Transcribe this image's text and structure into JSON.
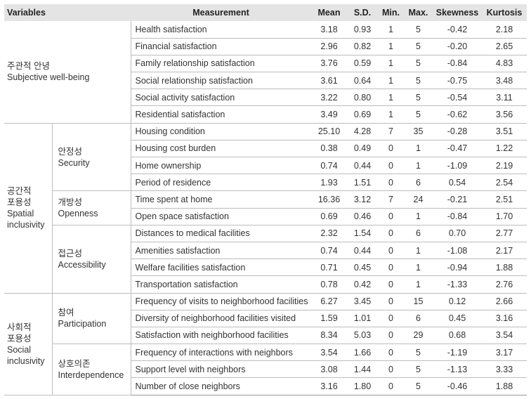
{
  "headers": {
    "variables": "Variables",
    "measurement": "Measurement",
    "mean": "Mean",
    "sd": "S.D.",
    "min": "Min.",
    "max": "Max.",
    "skewness": "Skewness",
    "kurtosis": "Kurtosis"
  },
  "groups": [
    {
      "ko": "주관적 안녕",
      "en": "Subjective well-being"
    },
    {
      "ko1": "공간적",
      "ko2": "포용성",
      "en1": "Spatial",
      "en2": "inclusivity"
    },
    {
      "ko1": "사회적",
      "ko2": "포용성",
      "en1": "Social",
      "en2": "inclusivity"
    }
  ],
  "subgroups": [
    {
      "ko": "안정성",
      "en": "Security"
    },
    {
      "ko": "개방성",
      "en": "Openness"
    },
    {
      "ko": "접근성",
      "en": "Accessibility"
    },
    {
      "ko": "참여",
      "en": "Participation"
    },
    {
      "ko": "상호의존",
      "en": "Interdependence"
    }
  ],
  "rows": [
    {
      "measurement": "Health satisfaction",
      "mean": "3.18",
      "sd": "0.93",
      "min": "1",
      "max": "5",
      "skewness": "-0.42",
      "kurtosis": "2.18"
    },
    {
      "measurement": "Financial satisfaction",
      "mean": "2.96",
      "sd": "0.82",
      "min": "1",
      "max": "5",
      "skewness": "-0.20",
      "kurtosis": "2.65"
    },
    {
      "measurement": "Family relationship satisfaction",
      "mean": "3.76",
      "sd": "0.59",
      "min": "1",
      "max": "5",
      "skewness": "-0.84",
      "kurtosis": "4.83"
    },
    {
      "measurement": "Social relationship satisfaction",
      "mean": "3.61",
      "sd": "0.64",
      "min": "1",
      "max": "5",
      "skewness": "-0.75",
      "kurtosis": "3.48"
    },
    {
      "measurement": "Social activity satisfaction",
      "mean": "3.22",
      "sd": "0.80",
      "min": "1",
      "max": "5",
      "skewness": "-0.54",
      "kurtosis": "3.11"
    },
    {
      "measurement": "Residential satisfaction",
      "mean": "3.49",
      "sd": "0.69",
      "min": "1",
      "max": "5",
      "skewness": "-0.62",
      "kurtosis": "3.56"
    },
    {
      "measurement": "Housing condition",
      "mean": "25.10",
      "sd": "4.28",
      "min": "7",
      "max": "35",
      "skewness": "-0.28",
      "kurtosis": "3.51"
    },
    {
      "measurement": "Housing cost burden",
      "mean": "0.38",
      "sd": "0.49",
      "min": "0",
      "max": "1",
      "skewness": "-0.47",
      "kurtosis": "1.22"
    },
    {
      "measurement": "Home ownership",
      "mean": "0.74",
      "sd": "0.44",
      "min": "0",
      "max": "1",
      "skewness": "-1.09",
      "kurtosis": "2.19"
    },
    {
      "measurement": "Period of residence",
      "mean": "1.93",
      "sd": "1.51",
      "min": "0",
      "max": "6",
      "skewness": "0.54",
      "kurtosis": "2.54"
    },
    {
      "measurement": "Time spent at home",
      "mean": "16.36",
      "sd": "3.12",
      "min": "7",
      "max": "24",
      "skewness": "-0.21",
      "kurtosis": "2.51"
    },
    {
      "measurement": "Open space satisfaction",
      "mean": "0.69",
      "sd": "0.46",
      "min": "0",
      "max": "1",
      "skewness": "-0.84",
      "kurtosis": "1.70"
    },
    {
      "measurement": "Distances to medical facilities",
      "mean": "2.32",
      "sd": "1.54",
      "min": "0",
      "max": "6",
      "skewness": "0.70",
      "kurtosis": "2.77"
    },
    {
      "measurement": "Amenities satisfaction",
      "mean": "0.74",
      "sd": "0.44",
      "min": "0",
      "max": "1",
      "skewness": "-1.08",
      "kurtosis": "2.17"
    },
    {
      "measurement": "Welfare facilities satisfaction",
      "mean": "0.71",
      "sd": "0.45",
      "min": "0",
      "max": "1",
      "skewness": "-0.94",
      "kurtosis": "1.88"
    },
    {
      "measurement": "Transportation satisfaction",
      "mean": "0.78",
      "sd": "0.42",
      "min": "0",
      "max": "1",
      "skewness": "-1.33",
      "kurtosis": "2.76"
    },
    {
      "measurement": "Frequency of visits to neighborhood facilities",
      "mean": "6.27",
      "sd": "3.45",
      "min": "0",
      "max": "15",
      "skewness": "0.12",
      "kurtosis": "2.66"
    },
    {
      "measurement": "Diversity of neighborhood facilities visited",
      "mean": "1.59",
      "sd": "1.01",
      "min": "0",
      "max": "6",
      "skewness": "0.45",
      "kurtosis": "3.16"
    },
    {
      "measurement": "Satisfaction with neighborhood facilities",
      "mean": "8.34",
      "sd": "5.03",
      "min": "0",
      "max": "29",
      "skewness": "0.68",
      "kurtosis": "3.54"
    },
    {
      "measurement": "Frequency of interactions with neighbors",
      "mean": "3.54",
      "sd": "1.66",
      "min": "0",
      "max": "5",
      "skewness": "-1.19",
      "kurtosis": "3.17"
    },
    {
      "measurement": "Support level with neighbors",
      "mean": "3.08",
      "sd": "1.44",
      "min": "0",
      "max": "5",
      "skewness": "-1.13",
      "kurtosis": "3.33"
    },
    {
      "measurement": "Number of close neighbors",
      "mean": "3.16",
      "sd": "1.80",
      "min": "0",
      "max": "5",
      "skewness": "-0.46",
      "kurtosis": "1.88"
    }
  ]
}
